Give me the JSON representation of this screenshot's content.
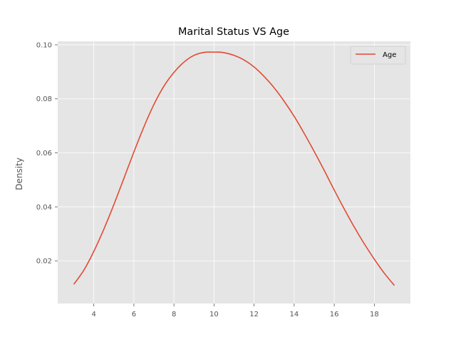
{
  "chart_data": {
    "type": "line",
    "title": "Marital Status VS Age",
    "xlabel": "",
    "ylabel": "Density",
    "xlim": [
      2.2,
      19.8
    ],
    "ylim": [
      0.0042,
      0.1013
    ],
    "xticks": [
      4,
      6,
      8,
      10,
      12,
      14,
      16,
      18
    ],
    "yticks": [
      0.02,
      0.04,
      0.06,
      0.08,
      0.1
    ],
    "ytick_labels": [
      "0.02",
      "0.04",
      "0.06",
      "0.08",
      "0.10"
    ],
    "grid": true,
    "legend": "top-right",
    "colors": {
      "background": "#e5e5e5",
      "grid": "#ffffff",
      "series": "#e24a33"
    },
    "series": [
      {
        "name": "Age",
        "x": [
          3.0,
          3.5,
          4.0,
          4.5,
          5.0,
          5.5,
          6.0,
          6.5,
          7.0,
          7.5,
          8.0,
          8.5,
          9.0,
          9.5,
          10.0,
          10.2,
          10.5,
          11.0,
          11.5,
          12.0,
          12.5,
          13.0,
          13.5,
          14.0,
          14.5,
          15.0,
          15.5,
          16.0,
          16.5,
          17.0,
          17.5,
          18.0,
          18.5,
          19.0
        ],
        "y": [
          0.0113,
          0.0165,
          0.0235,
          0.0317,
          0.0408,
          0.0505,
          0.0603,
          0.0696,
          0.0779,
          0.0847,
          0.0898,
          0.0936,
          0.0961,
          0.0972,
          0.0973,
          0.0973,
          0.0971,
          0.0961,
          0.0944,
          0.0918,
          0.0883,
          0.0841,
          0.0791,
          0.0735,
          0.0672,
          0.0605,
          0.0535,
          0.0462,
          0.0392,
          0.0325,
          0.0263,
          0.0206,
          0.0154,
          0.0109
        ]
      }
    ]
  }
}
